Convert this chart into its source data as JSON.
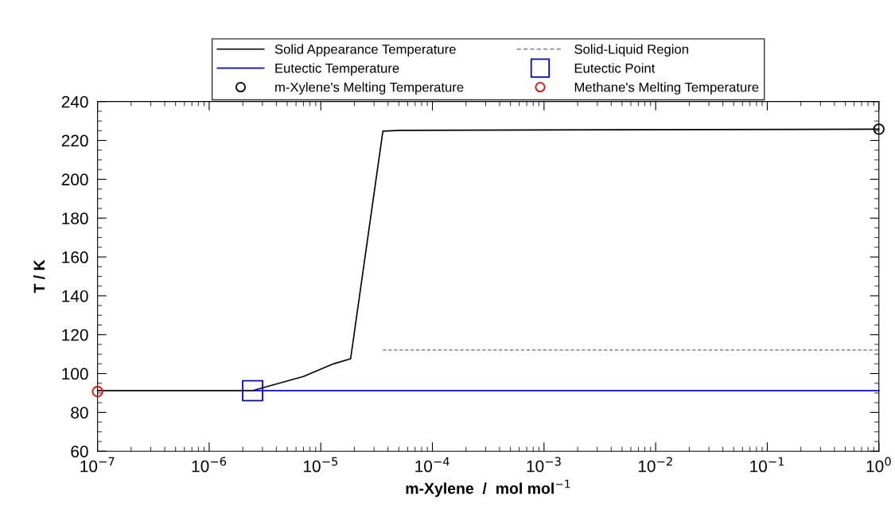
{
  "chart_data": {
    "type": "line",
    "xlabel": "m-Xylene  /  mol mol$^{−1}$",
    "ylabel": "T / K",
    "log": "x",
    "grid": false,
    "legend": "top",
    "xlim": [
      1e-07,
      1
    ],
    "xticks": [
      {
        "value": 1e-07,
        "label": "10$^{−7}$"
      },
      {
        "value": 1e-06,
        "label": "10$^{−6}$"
      },
      {
        "value": 1e-05,
        "label": "10$^{−5}$"
      },
      {
        "value": 0.0001,
        "label": "10$^{−4}$"
      },
      {
        "value": 0.001,
        "label": "10$^{−3}$"
      },
      {
        "value": 0.01,
        "label": "10$^{−2}$"
      },
      {
        "value": 0.1,
        "label": "10$^{−1}$"
      },
      {
        "value": 1,
        "label": "10$^{0}$"
      }
    ],
    "ylim": [
      60,
      240
    ],
    "yticks": [
      60,
      80,
      100,
      120,
      140,
      160,
      180,
      200,
      220,
      240
    ],
    "series": [
      {
        "name": "Solid Appearance Temperature",
        "line_style": "solid",
        "marker": "none",
        "color": "#000000",
        "x": [
          1e-07,
          2.45e-06,
          7e-06,
          1.3e-05,
          1.85e-05,
          3.6e-05,
          5.2e-05,
          1
        ],
        "values": [
          91.2,
          91.2,
          98.5,
          105,
          107.6,
          224.8,
          225.2,
          225.8
        ]
      },
      {
        "name": "Solid-Liquid Region",
        "line_style": "dashed",
        "marker": "none",
        "color": "#808080",
        "x": [
          3.6e-05,
          1
        ],
        "values": [
          112.1,
          112.1
        ]
      },
      {
        "name": "Eutectic Temperature",
        "line_style": "solid",
        "marker": "none",
        "color": "#0000ff",
        "x": [
          2.45e-06,
          1
        ],
        "values": [
          91.2,
          91.2
        ]
      },
      {
        "name": "Eutectic Point",
        "type": "scatter",
        "marker": "square",
        "color": "#0000ff",
        "x": [
          2.45e-06
        ],
        "values": [
          91.2
        ]
      },
      {
        "name": "m-Xylene's Melting Temperature",
        "type": "scatter",
        "marker": "circle",
        "color": "#000000",
        "x": [
          1
        ],
        "values": [
          225.8
        ]
      },
      {
        "name": "Methane's Melting Temperature",
        "type": "scatter",
        "marker": "circle",
        "color": "#ff0000",
        "x": [
          1e-07
        ],
        "values": [
          90.7
        ]
      }
    ]
  }
}
